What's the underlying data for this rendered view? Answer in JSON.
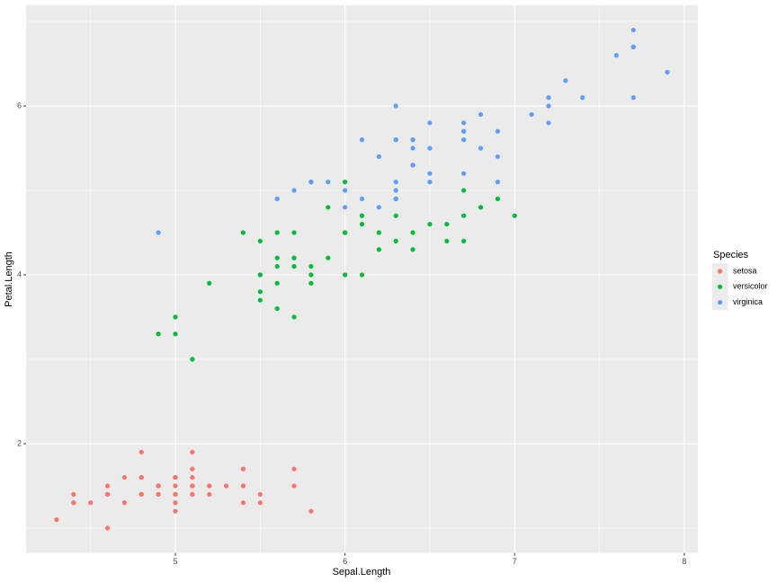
{
  "chart_data": {
    "type": "scatter",
    "x_label": "Sepal.Length",
    "y_label": "Petal.Length",
    "legend_title": "Species",
    "legend_position": "right",
    "xlim": [
      4.12,
      8.08
    ],
    "ylim": [
      0.705,
      7.195
    ],
    "xticks": [
      5,
      6,
      7,
      8
    ],
    "yticks": [
      2,
      4,
      6
    ],
    "x_minor_grid": [
      4.5,
      5.5,
      6.5,
      7.5
    ],
    "y_minor_grid": [
      1,
      3,
      5,
      7
    ],
    "grid": true,
    "panel_color": "#ebebeb",
    "series": [
      {
        "name": "setosa",
        "color": "#F8766D",
        "x": [
          5.1,
          4.9,
          4.7,
          4.6,
          5.0,
          5.4,
          4.6,
          5.0,
          4.4,
          4.9,
          5.4,
          4.8,
          4.8,
          4.3,
          5.8,
          5.7,
          5.4,
          5.1,
          5.7,
          5.1,
          5.4,
          5.1,
          4.6,
          5.1,
          4.8,
          5.0,
          5.0,
          5.2,
          5.2,
          4.7,
          4.8,
          5.4,
          5.2,
          5.5,
          4.9,
          5.0,
          5.5,
          4.9,
          4.4,
          5.1,
          5.0,
          4.5,
          4.4,
          5.0,
          5.1,
          4.8,
          5.1,
          4.6,
          5.3,
          5.0
        ],
        "values": [
          1.4,
          1.4,
          1.3,
          1.5,
          1.4,
          1.7,
          1.4,
          1.5,
          1.4,
          1.5,
          1.5,
          1.6,
          1.4,
          1.1,
          1.2,
          1.5,
          1.3,
          1.4,
          1.7,
          1.5,
          1.7,
          1.5,
          1.0,
          1.7,
          1.9,
          1.6,
          1.6,
          1.5,
          1.4,
          1.6,
          1.6,
          1.5,
          1.5,
          1.4,
          1.5,
          1.2,
          1.3,
          1.4,
          1.3,
          1.5,
          1.3,
          1.3,
          1.3,
          1.6,
          1.9,
          1.4,
          1.6,
          1.4,
          1.5,
          1.4
        ]
      },
      {
        "name": "versicolor",
        "color": "#00BA38",
        "x": [
          7.0,
          6.4,
          6.9,
          5.5,
          6.5,
          5.7,
          6.3,
          4.9,
          6.6,
          5.2,
          5.0,
          5.9,
          6.0,
          6.1,
          5.6,
          6.7,
          5.6,
          5.8,
          6.2,
          5.6,
          5.9,
          6.1,
          6.3,
          6.1,
          6.4,
          6.6,
          6.8,
          6.7,
          6.0,
          5.7,
          5.5,
          5.5,
          5.8,
          6.0,
          5.4,
          6.0,
          6.7,
          6.3,
          5.6,
          5.5,
          5.5,
          6.1,
          5.8,
          5.0,
          5.6,
          5.7,
          5.7,
          6.2,
          5.1,
          5.7
        ],
        "values": [
          4.7,
          4.5,
          4.9,
          4.0,
          4.6,
          4.5,
          4.7,
          3.3,
          4.6,
          3.9,
          3.5,
          4.2,
          4.0,
          4.7,
          3.6,
          4.4,
          4.5,
          4.1,
          4.5,
          3.9,
          4.8,
          4.0,
          4.9,
          4.7,
          4.3,
          4.4,
          4.8,
          5.0,
          4.5,
          3.5,
          3.8,
          3.7,
          3.9,
          5.1,
          4.5,
          4.5,
          4.7,
          4.4,
          4.1,
          4.0,
          4.4,
          4.6,
          4.0,
          3.3,
          4.2,
          4.2,
          4.2,
          4.3,
          3.0,
          4.1
        ]
      },
      {
        "name": "virginica",
        "color": "#619CFF",
        "x": [
          6.3,
          5.8,
          7.1,
          6.3,
          6.5,
          7.6,
          4.9,
          7.3,
          6.7,
          7.2,
          6.5,
          6.4,
          6.8,
          5.7,
          5.8,
          6.4,
          6.5,
          7.7,
          7.7,
          6.0,
          6.9,
          5.6,
          7.7,
          6.3,
          6.7,
          7.2,
          6.2,
          6.1,
          6.4,
          7.2,
          7.4,
          7.9,
          6.4,
          6.3,
          6.1,
          7.7,
          6.3,
          6.4,
          6.0,
          6.9,
          6.7,
          6.9,
          5.8,
          6.8,
          6.7,
          6.7,
          6.3,
          6.5,
          6.2,
          5.9
        ],
        "values": [
          6.0,
          5.1,
          5.9,
          5.6,
          5.8,
          6.6,
          4.5,
          6.3,
          5.8,
          6.1,
          5.1,
          5.3,
          5.5,
          5.0,
          5.1,
          5.3,
          5.5,
          6.7,
          6.9,
          5.0,
          5.7,
          4.9,
          6.7,
          4.9,
          5.7,
          6.0,
          4.8,
          4.9,
          5.6,
          5.8,
          6.1,
          6.4,
          5.6,
          5.1,
          5.6,
          6.1,
          5.6,
          5.5,
          4.8,
          5.4,
          5.6,
          5.1,
          5.1,
          5.9,
          5.7,
          5.2,
          5.0,
          5.2,
          5.4,
          5.1
        ]
      }
    ]
  }
}
